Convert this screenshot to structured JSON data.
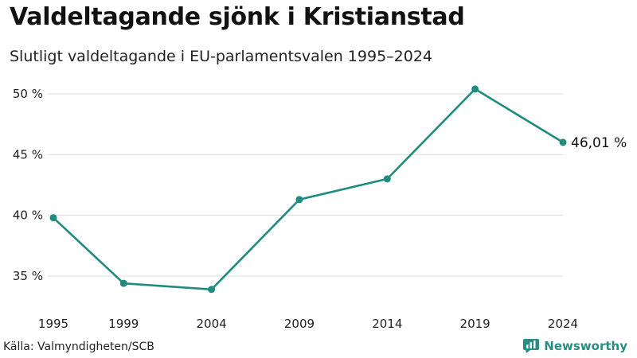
{
  "title": "Valdeltagande sjönk i Kristianstad",
  "subtitle": "Slutligt valdeltagande i EU-parlamentsvalen 1995–2024",
  "source": "Källa: Valmyndigheten/SCB",
  "brand": "Newsworthy",
  "colors": {
    "line": "#1f8c7e",
    "grid": "#dcdcdc",
    "brand": "#2a8c84"
  },
  "chart_data": {
    "type": "line",
    "title": "Valdeltagande sjönk i Kristianstad",
    "subtitle": "Slutligt valdeltagande i EU-parlamentsvalen 1995–2024",
    "xlabel": "",
    "ylabel": "",
    "x": [
      1995,
      1999,
      2004,
      2009,
      2014,
      2019,
      2024
    ],
    "x_tick_labels": [
      "1995",
      "1999",
      "2004",
      "2009",
      "2014",
      "2019",
      "2024"
    ],
    "series": [
      {
        "name": "Valdeltagande",
        "values": [
          39.8,
          34.4,
          33.9,
          41.3,
          43.0,
          50.4,
          46.01
        ]
      }
    ],
    "y_ticks": [
      35,
      40,
      45,
      50
    ],
    "y_tick_labels": [
      "35 %",
      "40 %",
      "45 %",
      "50 %"
    ],
    "ylim": [
      32.5,
      50.5
    ],
    "grid": true,
    "end_label": "46,01 %"
  }
}
